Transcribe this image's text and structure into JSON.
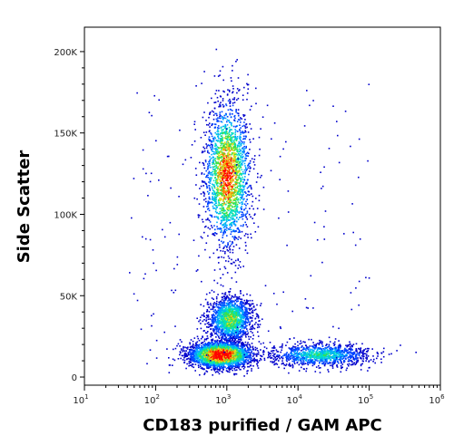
{
  "chart_data": {
    "type": "scatter",
    "title": "",
    "xlabel": "CD183 purified / GAM APC",
    "ylabel": "Side Scatter",
    "x_scale": "log",
    "xlim": [
      10,
      1000000
    ],
    "ylim": [
      -5000,
      215000
    ],
    "grid": false,
    "legend": "none",
    "density_colors": [
      "#0000cc",
      "#0044ff",
      "#00aaff",
      "#00e0c0",
      "#40e040",
      "#e0e020",
      "#ff8000",
      "#ff0000"
    ],
    "x_ticks": [
      {
        "base": "10",
        "exp": "1"
      },
      {
        "base": "10",
        "exp": "2"
      },
      {
        "base": "10",
        "exp": "3"
      },
      {
        "base": "10",
        "exp": "4"
      },
      {
        "base": "10",
        "exp": "5"
      },
      {
        "base": "10",
        "exp": "6"
      }
    ],
    "y_ticks": [
      "0",
      "50K",
      "100K",
      "150K",
      "200K"
    ],
    "y_tick_values": [
      0,
      50000,
      100000,
      150000,
      200000
    ],
    "populations": [
      {
        "name_hidden": "granulocytes",
        "x_center": 1000,
        "x_spread_decades": 0.16,
        "y_center": 125000,
        "y_spread": 22000,
        "relative_density": 1.0
      },
      {
        "name_hidden": "monocytes",
        "x_center": 1100,
        "x_spread_decades": 0.15,
        "y_center": 36000,
        "y_spread": 7000,
        "relative_density": 0.7
      },
      {
        "name_hidden": "lymphocytes",
        "x_center": 800,
        "x_spread_decades": 0.22,
        "y_center": 14000,
        "y_spread": 4000,
        "relative_density": 1.2
      },
      {
        "name_hidden": "positive lymphocytes",
        "x_center": 20000,
        "x_spread_decades": 0.35,
        "y_center": 14000,
        "y_spread": 3500,
        "relative_density": 0.5
      }
    ]
  }
}
